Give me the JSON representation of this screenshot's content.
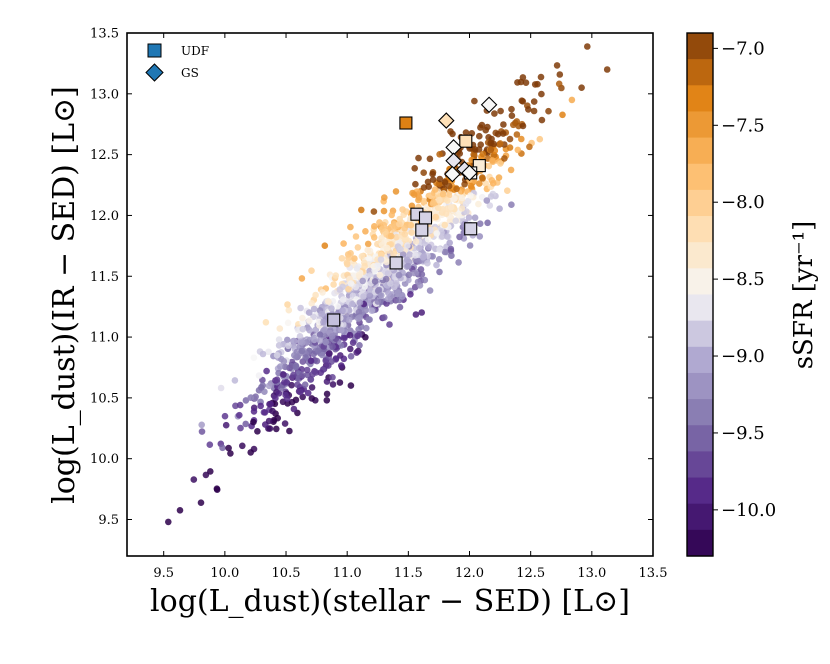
{
  "chart_data": {
    "type": "scatter",
    "xlabel": "log(L_dust)(stellar − SED) [L⊙]",
    "ylabel": "log(L_dust)(IR − SED) [L⊙]",
    "xlim": [
      9.2,
      13.5
    ],
    "ylim": [
      9.2,
      13.5
    ],
    "xticks": [
      "9.5",
      "10.0",
      "10.5",
      "11.0",
      "11.5",
      "12.0",
      "12.5",
      "13.0",
      "13.5"
    ],
    "yticks": [
      "9.5",
      "10.0",
      "10.5",
      "11.0",
      "11.5",
      "12.0",
      "12.5",
      "13.0",
      "13.5"
    ],
    "colorbar": {
      "label": "sSFR [yr⁻¹]",
      "range": [
        -10.3,
        -6.9
      ],
      "ticks": [
        "−7.0",
        "−7.5",
        "−8.0",
        "−8.5",
        "−9.0",
        "−9.5",
        "−10.0"
      ],
      "colormap": "PuOr_r"
    },
    "legend": {
      "placement": "top-left",
      "entries": [
        {
          "label": "UDF",
          "marker": "square",
          "color": "#1f77b4"
        },
        {
          "label": "GS",
          "marker": "diamond",
          "color": "#1f77b4"
        }
      ]
    },
    "series": [
      {
        "name": "UDF",
        "marker": "square",
        "points": [
          {
            "x": 11.48,
            "y": 12.76,
            "ssfr": -7.3
          },
          {
            "x": 11.97,
            "y": 12.61,
            "ssfr": -8.2
          },
          {
            "x": 12.08,
            "y": 12.41,
            "ssfr": -8.4
          },
          {
            "x": 12.01,
            "y": 12.35,
            "ssfr": -8.6
          },
          {
            "x": 11.57,
            "y": 12.01,
            "ssfr": -8.8
          },
          {
            "x": 11.64,
            "y": 11.98,
            "ssfr": -8.8
          },
          {
            "x": 11.61,
            "y": 11.88,
            "ssfr": -8.8
          },
          {
            "x": 12.01,
            "y": 11.89,
            "ssfr": -8.8
          },
          {
            "x": 11.4,
            "y": 11.61,
            "ssfr": -8.8
          },
          {
            "x": 10.89,
            "y": 11.14,
            "ssfr": -8.9
          }
        ]
      },
      {
        "name": "GS",
        "marker": "diamond",
        "points": [
          {
            "x": 12.16,
            "y": 12.91,
            "ssfr": -8.6
          },
          {
            "x": 11.81,
            "y": 12.78,
            "ssfr": -8.2
          },
          {
            "x": 11.87,
            "y": 12.56,
            "ssfr": -8.6
          },
          {
            "x": 11.87,
            "y": 12.45,
            "ssfr": -8.7
          },
          {
            "x": 11.96,
            "y": 12.38,
            "ssfr": -8.7
          },
          {
            "x": 12.0,
            "y": 12.35,
            "ssfr": -8.6
          },
          {
            "x": 11.86,
            "y": 12.34,
            "ssfr": -8.6
          }
        ]
      }
    ]
  }
}
